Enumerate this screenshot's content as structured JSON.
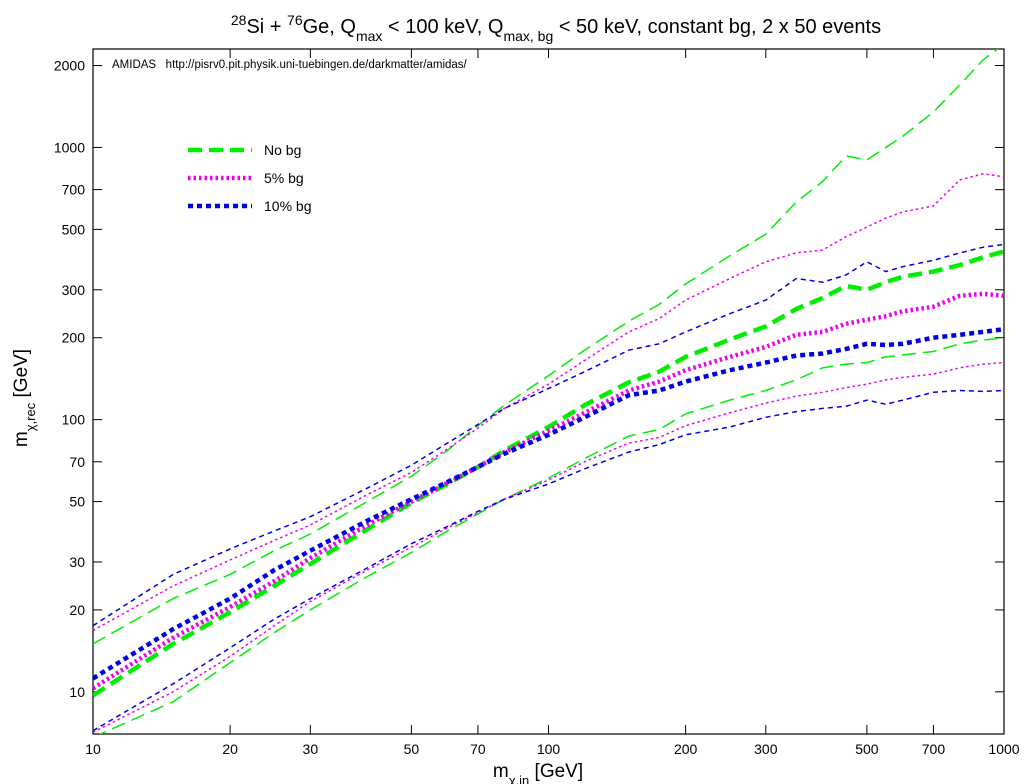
{
  "chart_data": {
    "type": "line",
    "title": {
      "parts": [
        {
          "t": "28",
          "s": "sup"
        },
        {
          "t": "Si + "
        },
        {
          "t": "76",
          "s": "sup"
        },
        {
          "t": "Ge, Q"
        },
        {
          "t": "max",
          "s": "sub"
        },
        {
          "t": " < 100 keV, Q"
        },
        {
          "t": "max, bg",
          "s": "sub"
        },
        {
          "t": " < 50 keV, constant bg, 2 x 50 events"
        }
      ]
    },
    "xlabel": {
      "parts": [
        {
          "t": "m"
        },
        {
          "t": "χ,in",
          "s": "sub"
        },
        {
          "t": " [GeV]"
        }
      ]
    },
    "ylabel": {
      "parts": [
        {
          "t": "m"
        },
        {
          "t": "χ,rec",
          "s": "sub"
        },
        {
          "t": " [GeV]"
        }
      ]
    },
    "annotation": "AMIDAS   http://pisrv0.pit.physik.uni-tuebingen.de/darkmatter/amidas/",
    "x_scale": "log",
    "y_scale": "log",
    "xlim": [
      10,
      1000
    ],
    "ylim": [
      7,
      2300
    ],
    "x_ticks": [
      10,
      20,
      30,
      50,
      70,
      100,
      200,
      300,
      500,
      700,
      1000
    ],
    "x_tick_labels": [
      "10",
      "20",
      "30",
      "50",
      "70",
      "100",
      "200",
      "300",
      "500",
      "700",
      "1000"
    ],
    "y_ticks": [
      10,
      20,
      30,
      50,
      70,
      100,
      200,
      300,
      500,
      700,
      1000,
      2000
    ],
    "y_tick_labels": [
      "10",
      "20",
      "30",
      "50",
      "70",
      "100",
      "200",
      "300",
      "500",
      "700",
      "1000",
      "2000"
    ],
    "grid": false,
    "legend_position": "top-left",
    "legend": [
      {
        "label": "No bg",
        "color": "#00ee00",
        "dash": "long"
      },
      {
        "label": "5% bg",
        "color": "#ee00ee",
        "dash": "dot"
      },
      {
        "label": "10% bg",
        "color": "#0000e6",
        "dash": "short"
      }
    ],
    "x": [
      10,
      15,
      20,
      25,
      30,
      40,
      50,
      60,
      70,
      80,
      100,
      120,
      150,
      175,
      200,
      250,
      300,
      350,
      400,
      450,
      500,
      550,
      600,
      700,
      800,
      900,
      1000
    ],
    "series": [
      {
        "name": "No bg",
        "role": "median",
        "color": "#00ee00",
        "dash": "long",
        "values": [
          9.7,
          15,
          19.6,
          24.5,
          29.5,
          39.5,
          49.5,
          58,
          67,
          77,
          94,
          113,
          137,
          150,
          170,
          197,
          220,
          255,
          280,
          310,
          300,
          320,
          335,
          350,
          370,
          395,
          415
        ]
      },
      {
        "name": "No bg",
        "role": "upper",
        "color": "#00ee00",
        "dash": "long",
        "values": [
          15,
          22,
          27,
          33,
          38,
          50,
          62,
          77,
          95,
          113,
          145,
          180,
          230,
          265,
          315,
          400,
          480,
          630,
          750,
          930,
          900,
          1000,
          1100,
          1350,
          1700,
          2100,
          2400
        ]
      },
      {
        "name": "No bg",
        "role": "lower",
        "color": "#00ee00",
        "dash": "long",
        "values": [
          6.8,
          9.2,
          12.8,
          16.5,
          20,
          26.5,
          32.5,
          39,
          45,
          51,
          61,
          72,
          87,
          92,
          105,
          118,
          128,
          140,
          155,
          160,
          162,
          170,
          173,
          178,
          190,
          196,
          200
        ]
      },
      {
        "name": "5% bg",
        "role": "median",
        "color": "#ee00ee",
        "dash": "dot",
        "values": [
          10.3,
          15.8,
          20.5,
          25.5,
          31,
          41,
          50,
          58.5,
          67,
          76,
          91,
          106,
          128,
          138,
          152,
          170,
          185,
          205,
          210,
          225,
          233,
          240,
          250,
          260,
          285,
          290,
          285
        ]
      },
      {
        "name": "5% bg",
        "role": "upper",
        "color": "#ee00ee",
        "dash": "dot",
        "values": [
          16.8,
          24.5,
          30.5,
          36,
          41,
          53,
          64,
          78,
          93,
          110,
          135,
          165,
          210,
          235,
          275,
          330,
          380,
          410,
          420,
          470,
          510,
          550,
          580,
          610,
          760,
          800,
          780
        ]
      },
      {
        "name": "5% bg",
        "role": "lower",
        "color": "#ee00ee",
        "dash": "dot",
        "values": [
          7.1,
          10,
          13.5,
          17.5,
          21.5,
          28,
          34,
          40,
          45.5,
          51,
          60,
          70,
          82,
          86,
          95,
          106,
          115,
          122,
          126,
          131,
          135,
          140,
          143,
          147,
          155,
          160,
          162
        ]
      },
      {
        "name": "10% bg",
        "role": "median",
        "color": "#0000e6",
        "dash": "short",
        "values": [
          11.2,
          17,
          22,
          28,
          33,
          42.5,
          51,
          59,
          67,
          75,
          88,
          102,
          123,
          128,
          138,
          152,
          162,
          172,
          175,
          182,
          190,
          188,
          190,
          200,
          205,
          210,
          215
        ]
      },
      {
        "name": "10% bg",
        "role": "upper",
        "color": "#0000e6",
        "dash": "short",
        "values": [
          17.5,
          27,
          33.5,
          39,
          44,
          56,
          68,
          82,
          96,
          110,
          130,
          150,
          180,
          190,
          210,
          245,
          275,
          330,
          320,
          340,
          380,
          350,
          365,
          385,
          410,
          430,
          440
        ]
      },
      {
        "name": "10% bg",
        "role": "lower",
        "color": "#0000e6",
        "dash": "short",
        "values": [
          7.2,
          10.7,
          14.5,
          18.5,
          22,
          28.5,
          35,
          40.5,
          46,
          51,
          58,
          66,
          76,
          81,
          88,
          94,
          102,
          107,
          110,
          112,
          118,
          114,
          118,
          126,
          128,
          127,
          128
        ]
      }
    ]
  }
}
